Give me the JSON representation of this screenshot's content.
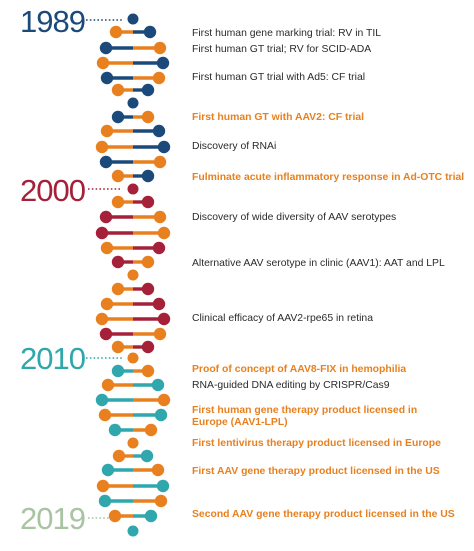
{
  "colors": {
    "navy": "#1b4a7a",
    "orange": "#e8801f",
    "crimson": "#a5213a",
    "teal": "#2fa7ac",
    "sage": "#a9c4a2",
    "text": "#2b2b2b"
  },
  "years": [
    {
      "label": "1989",
      "color": "#1b4a7a"
    },
    {
      "label": "2000",
      "color": "#a5213a"
    },
    {
      "label": "2010",
      "color": "#2fa7ac"
    },
    {
      "label": "2019",
      "color": "#a9c4a2"
    }
  ],
  "events": [
    {
      "text": "First human gene marking trial: RV in TIL",
      "highlight": false
    },
    {
      "text": "First human GT trial; RV for SCID-ADA",
      "highlight": false
    },
    {
      "text": "First human GT trial with Ad5: CF trial",
      "highlight": false
    },
    {
      "text": "First human GT with AAV2: CF trial",
      "highlight": true
    },
    {
      "text": "Discovery of RNAi",
      "highlight": false
    },
    {
      "text": "Fulminate acute inflammatory response in Ad-OTC trial",
      "highlight": true
    },
    {
      "text": "Discovery of wide diversity of AAV serotypes",
      "highlight": false
    },
    {
      "text": "Alternative AAV serotype in clinic (AAV1): AAT and LPL",
      "highlight": false
    },
    {
      "text": "Clinical efficacy of AAV2-rpe65 in retina",
      "highlight": false
    },
    {
      "text": "Proof of concept of AAV8-FIX in hemophilia",
      "highlight": true
    },
    {
      "text": "RNA-guided DNA editing by CRISPR/Cas9",
      "highlight": false
    },
    {
      "text": "First human gene therapy product licensed in Europe (AAV1-LPL)",
      "highlight": true
    },
    {
      "text": "First lentivirus therapy product licensed in Europe",
      "highlight": true
    },
    {
      "text": "First AAV gene therapy product licensed in the US",
      "highlight": true
    },
    {
      "text": "Second AAV gene therapy product licensed in the US",
      "highlight": true
    }
  ]
}
